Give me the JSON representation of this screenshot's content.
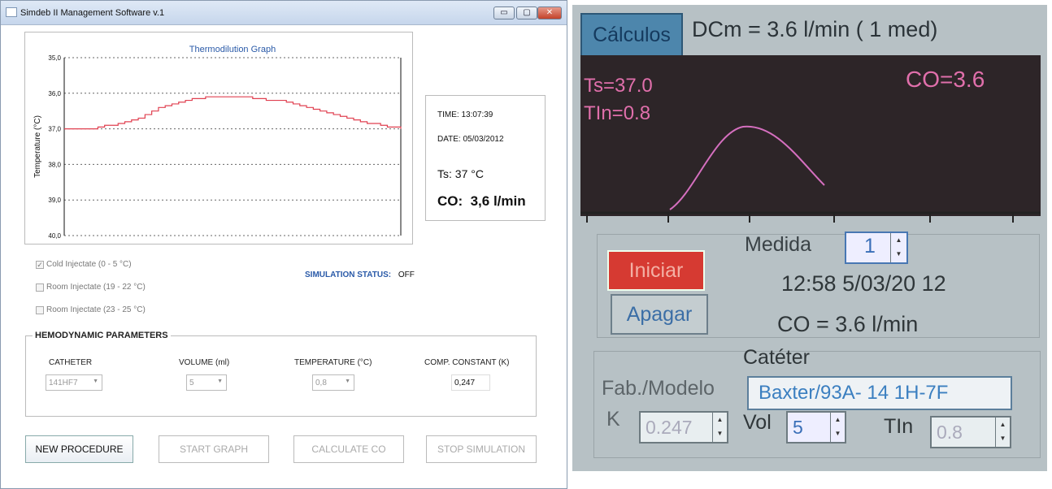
{
  "window": {
    "title": "Simdeb II Management Software v.1",
    "controls": [
      "minimize-icon",
      "maximize-icon",
      "close-icon"
    ]
  },
  "chart_data": {
    "type": "line",
    "title": "Thermodilution Graph",
    "ylabel": "Temperature (°C)",
    "xlabel": "",
    "yticks": [
      "35,0",
      "36,0",
      "37,0",
      "38,0",
      "39,0",
      "40,0"
    ],
    "ylim": [
      35.0,
      40.0
    ],
    "y_inverted": true,
    "grid": "dotted horizontal",
    "color": "#e04050",
    "series": [
      {
        "values": [
          37.0,
          37.0,
          37.0,
          37.0,
          37.0,
          36.95,
          36.9,
          36.9,
          36.85,
          36.8,
          36.75,
          36.7,
          36.6,
          36.5,
          36.4,
          36.35,
          36.3,
          36.25,
          36.2,
          36.15,
          36.15,
          36.1,
          36.1,
          36.1,
          36.1,
          36.1,
          36.1,
          36.1,
          36.15,
          36.15,
          36.2,
          36.2,
          36.2,
          36.25,
          36.3,
          36.35,
          36.4,
          36.45,
          36.5,
          36.55,
          36.6,
          36.65,
          36.7,
          36.75,
          36.8,
          36.85,
          36.85,
          36.9,
          36.95,
          36.95,
          37.0
        ]
      }
    ]
  },
  "info": {
    "time": "TIME: 13:07:39",
    "date": "DATE: 05/03/2012",
    "ts": "Ts: 37 °C",
    "co": "CO:  3,6 l/min"
  },
  "injectates": [
    {
      "label": "Cold Injectate (0 - 5 °C)",
      "checked": true
    },
    {
      "label": "Room Injectate (19 - 22 °C)",
      "checked": false
    },
    {
      "label": "Room Injectate (23 - 25 °C)",
      "checked": false
    }
  ],
  "status": {
    "label": "SIMULATION STATUS:",
    "value": "OFF"
  },
  "hemo": {
    "title": "HEMODYNAMIC PARAMETERS",
    "catheter_label": "CATHETER",
    "catheter_value": "141HF7",
    "volume_label": "VOLUME (ml)",
    "volume_value": "5",
    "temperature_label": "TEMPERATURE (°C)",
    "temperature_value": "0,8",
    "comp_label": "COMP. CONSTANT (K)",
    "comp_value": "0,247"
  },
  "buttons": {
    "new": "NEW PROCEDURE",
    "start": "START GRAPH",
    "calculate": "CALCULATE CO",
    "stop": "STOP SIMULATION"
  },
  "photo": {
    "calc_button": "Cálculos",
    "dcm": "DCm = 3.6 l/min ( 1 med)",
    "ts": "Ts=37.0",
    "tin": "TIn=0.8",
    "co_screen": "CO=3.6",
    "medida_label": "Medida",
    "medida_value": "1",
    "iniciar": "Iniciar",
    "apagar": "Apagar",
    "datetime": "12:58  5/03/20 12",
    "co_line": "CO = 3.6 l/min",
    "cateter_label": "Catéter",
    "fab_label": "Fab./Modelo",
    "fab_value": "Baxter/93A- 14 1H-7F",
    "k_label": "K",
    "k_value": "0.247",
    "vol_label": "Vol",
    "vol_value": "5",
    "tin_label": "TIn",
    "tin_value": "0.8",
    "curve_color": "#d56fbf"
  }
}
